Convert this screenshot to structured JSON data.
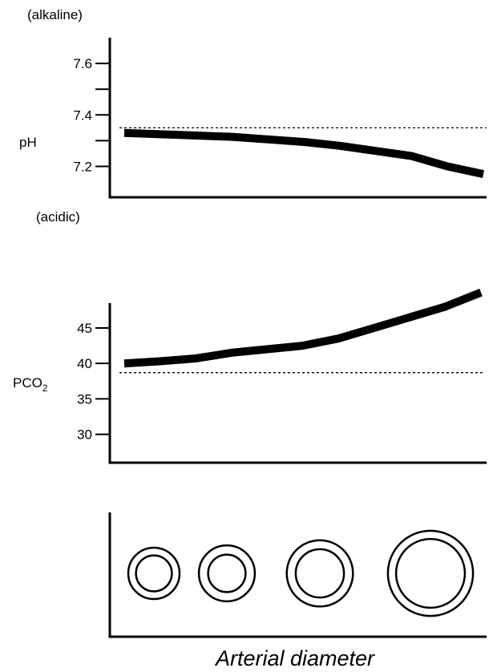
{
  "chart_data": [
    {
      "type": "line",
      "top_annotation": "(alkaline)",
      "bottom_annotation": "(acidic)",
      "ylabel": "pH",
      "yticks": [
        7.2,
        7.4,
        7.6
      ],
      "ylim": [
        7.08,
        7.7
      ],
      "xlim": [
        0,
        100
      ],
      "reference_y": 7.35,
      "series": [
        {
          "x": [
            0,
            10,
            20,
            30,
            40,
            50,
            60,
            70,
            80,
            90,
            100
          ],
          "y": [
            7.33,
            7.325,
            7.32,
            7.315,
            7.305,
            7.295,
            7.28,
            7.26,
            7.24,
            7.2,
            7.17
          ]
        }
      ]
    },
    {
      "type": "line",
      "ylabel": "PCO",
      "ylabel_sub": "2",
      "yticks": [
        30,
        35,
        40,
        45
      ],
      "ylim": [
        26,
        48.5
      ],
      "xlim": [
        0,
        100
      ],
      "reference_y": 38.7,
      "series": [
        {
          "x": [
            0,
            10,
            20,
            30,
            40,
            50,
            60,
            70,
            80,
            90,
            100
          ],
          "y": [
            40,
            40.3,
            40.7,
            41.5,
            42,
            42.5,
            43.5,
            45,
            46.5,
            48,
            50
          ]
        }
      ]
    },
    {
      "type": "diagram",
      "xlabel": "Arterial diameter",
      "vessels": [
        {
          "outer": 1.0,
          "inner": 0.7
        },
        {
          "outer": 1.09,
          "inner": 0.73
        },
        {
          "outer": 1.29,
          "inner": 0.94
        },
        {
          "outer": 1.66,
          "inner": 1.34
        }
      ]
    }
  ]
}
